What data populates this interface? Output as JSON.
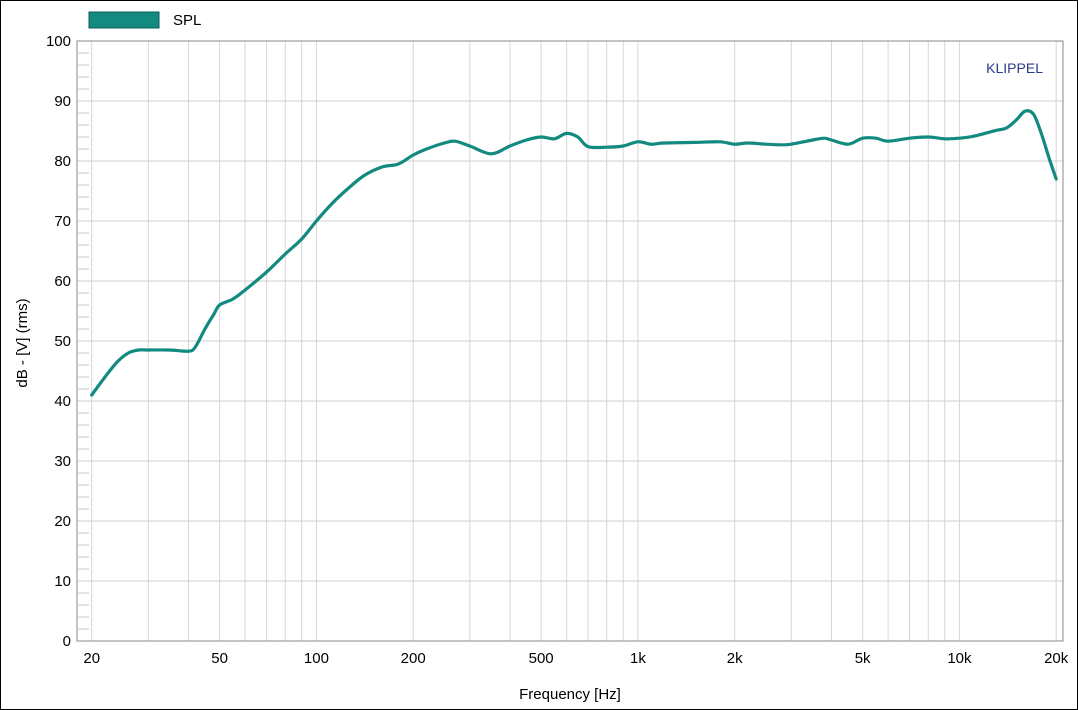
{
  "chart_data": {
    "type": "line",
    "title": "",
    "brand": "KLIPPEL",
    "xlabel": "Frequency [Hz]",
    "ylabel": "dB - [V]  (rms)",
    "xscale": "log",
    "xlim": [
      18,
      21000
    ],
    "ylim": [
      0,
      100
    ],
    "x_ticks": [
      {
        "value": 20,
        "label": "20"
      },
      {
        "value": 50,
        "label": "50"
      },
      {
        "value": 100,
        "label": "100"
      },
      {
        "value": 200,
        "label": "200"
      },
      {
        "value": 500,
        "label": "500"
      },
      {
        "value": 1000,
        "label": "1k"
      },
      {
        "value": 2000,
        "label": "2k"
      },
      {
        "value": 5000,
        "label": "5k"
      },
      {
        "value": 10000,
        "label": "10k"
      },
      {
        "value": 20000,
        "label": "20k"
      }
    ],
    "y_ticks": [
      {
        "value": 0,
        "label": "0"
      },
      {
        "value": 10,
        "label": "10"
      },
      {
        "value": 20,
        "label": "20"
      },
      {
        "value": 30,
        "label": "30"
      },
      {
        "value": 40,
        "label": "40"
      },
      {
        "value": 50,
        "label": "50"
      },
      {
        "value": 60,
        "label": "60"
      },
      {
        "value": 70,
        "label": "70"
      },
      {
        "value": 80,
        "label": "80"
      },
      {
        "value": 90,
        "label": "90"
      },
      {
        "value": 100,
        "label": "100"
      }
    ],
    "grid": true,
    "legend": {
      "position": "top-left",
      "entries": [
        {
          "name": "SPL",
          "color": "#138a80"
        }
      ]
    },
    "series": [
      {
        "name": "SPL",
        "color": "#138a80",
        "x": [
          20,
          22,
          24,
          26,
          28,
          30,
          35,
          40,
          42,
          45,
          48,
          50,
          55,
          60,
          70,
          80,
          90,
          100,
          110,
          120,
          140,
          160,
          180,
          200,
          220,
          250,
          270,
          300,
          350,
          400,
          450,
          500,
          550,
          600,
          650,
          700,
          800,
          900,
          1000,
          1100,
          1200,
          1500,
          1800,
          2000,
          2200,
          2500,
          2800,
          3000,
          3500,
          3800,
          4000,
          4500,
          5000,
          5500,
          6000,
          7000,
          8000,
          9000,
          10000,
          11000,
          12000,
          13000,
          14000,
          15000,
          16000,
          17000,
          18000,
          19000,
          20000
        ],
        "y": [
          41,
          44,
          46.5,
          48,
          48.5,
          48.5,
          48.5,
          48.3,
          49,
          52,
          54.5,
          56,
          57,
          58.5,
          61.5,
          64.5,
          67,
          70,
          72.5,
          74.5,
          77.5,
          79,
          79.5,
          81,
          82,
          83,
          83.3,
          82.5,
          81.2,
          82.5,
          83.5,
          84,
          83.7,
          84.6,
          84,
          82.4,
          82.3,
          82.5,
          83.2,
          82.8,
          83,
          83.1,
          83.2,
          82.8,
          83,
          82.8,
          82.7,
          82.8,
          83.5,
          83.8,
          83.5,
          82.8,
          83.8,
          83.8,
          83.3,
          83.8,
          84,
          83.7,
          83.8,
          84.1,
          84.6,
          85.1,
          85.5,
          86.8,
          88.3,
          87.8,
          84.5,
          80.5,
          77
        ]
      }
    ]
  }
}
